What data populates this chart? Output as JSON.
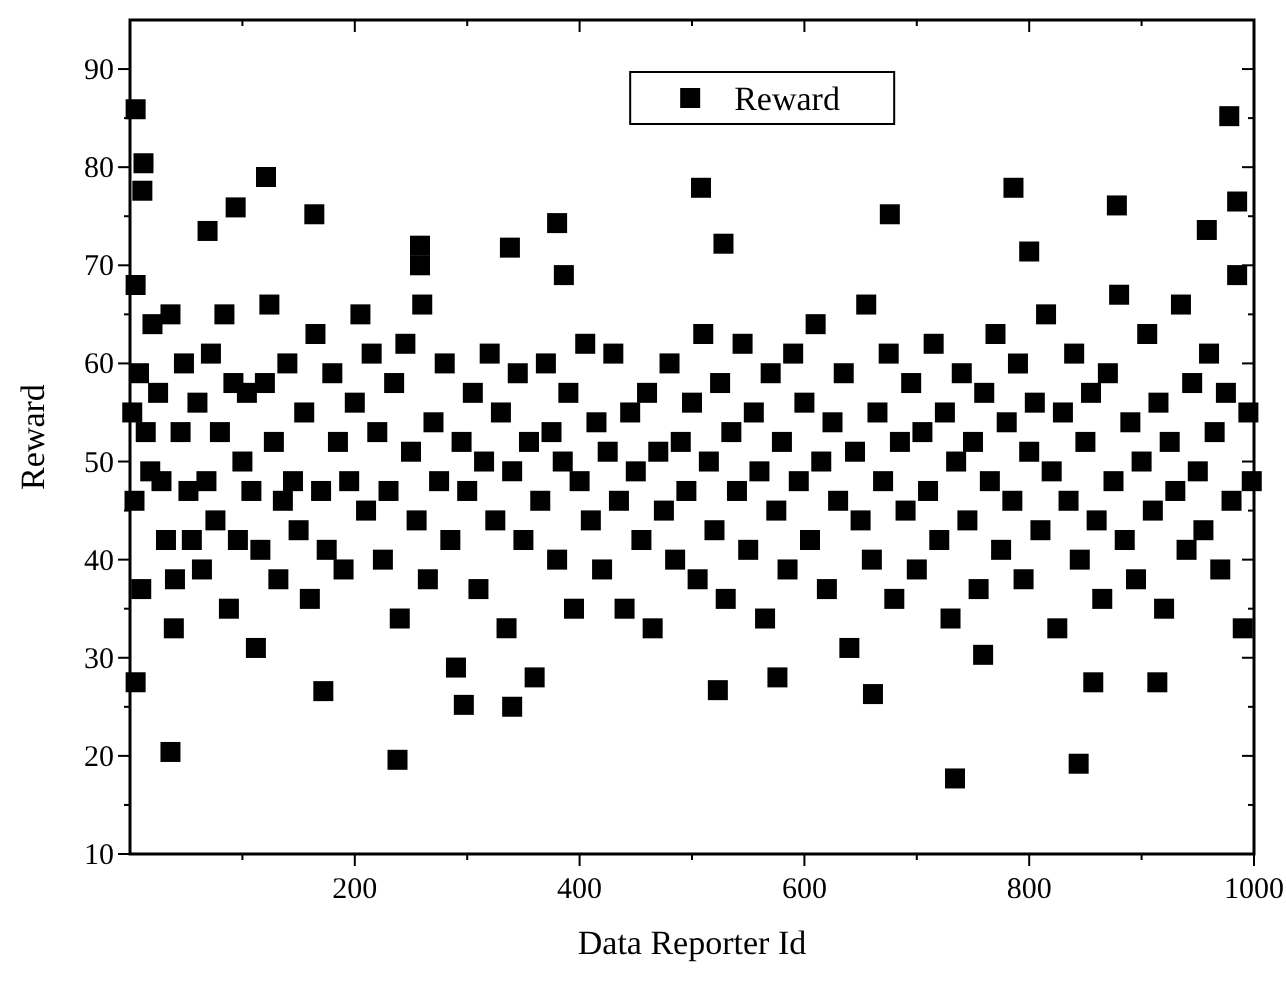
{
  "chart_data": {
    "type": "scatter",
    "xlabel": "Data Reporter Id",
    "ylabel": "Reward",
    "xlim": [
      0,
      1000
    ],
    "ylim": [
      10,
      95
    ],
    "xticks": [
      {
        "value": 100,
        "label": null
      },
      200,
      {
        "value": 300,
        "label": null
      },
      400,
      {
        "value": 500,
        "label": null
      },
      600,
      {
        "value": 700,
        "label": null
      },
      800,
      {
        "value": 900,
        "label": null
      },
      1000
    ],
    "yticks": [
      10,
      {
        "value": 15,
        "label": null
      },
      20,
      {
        "value": 25,
        "label": null
      },
      30,
      {
        "value": 35,
        "label": null
      },
      40,
      {
        "value": 45,
        "label": null
      },
      50,
      {
        "value": 55,
        "label": null
      },
      60,
      {
        "value": 65,
        "label": null
      },
      70,
      {
        "value": 75,
        "label": null
      },
      80,
      {
        "value": 85,
        "label": null
      },
      90
    ],
    "grid": false,
    "legend": "top",
    "marker": "square",
    "series": [
      {
        "name": "Reward",
        "color": "#000000",
        "x": [
          5,
          12,
          11,
          5,
          5,
          36,
          39,
          69,
          94,
          121,
          164,
          172,
          238,
          258,
          258,
          338,
          380,
          340,
          297,
          386,
          978,
          508,
          786,
          676,
          878,
          985,
          528,
          800,
          958,
          734,
          844,
          523,
          661,
          857,
          914,
          576,
          759,
          2,
          4,
          8,
          10,
          14,
          18,
          20,
          25,
          28,
          32,
          36,
          40,
          45,
          48,
          52,
          55,
          60,
          64,
          68,
          72,
          76,
          80,
          84,
          88,
          92,
          96,
          100,
          104,
          108,
          112,
          116,
          120,
          124,
          128,
          132,
          136,
          140,
          145,
          150,
          155,
          160,
          165,
          170,
          175,
          180,
          185,
          190,
          195,
          200,
          205,
          210,
          215,
          220,
          225,
          230,
          235,
          240,
          245,
          250,
          255,
          260,
          265,
          270,
          275,
          280,
          285,
          290,
          295,
          300,
          305,
          310,
          315,
          320,
          325,
          330,
          335,
          340,
          345,
          350,
          355,
          360,
          365,
          370,
          375,
          380,
          385,
          390,
          395,
          400,
          405,
          410,
          415,
          420,
          425,
          430,
          435,
          440,
          445,
          450,
          455,
          460,
          465,
          470,
          475,
          480,
          485,
          490,
          495,
          500,
          505,
          510,
          515,
          520,
          525,
          530,
          535,
          540,
          545,
          550,
          555,
          560,
          565,
          570,
          575,
          580,
          585,
          590,
          595,
          600,
          605,
          610,
          615,
          620,
          625,
          630,
          635,
          640,
          645,
          650,
          655,
          660,
          665,
          670,
          675,
          680,
          685,
          690,
          695,
          700,
          705,
          710,
          715,
          720,
          725,
          730,
          735,
          740,
          745,
          750,
          755,
          760,
          765,
          770,
          775,
          780,
          785,
          790,
          795,
          800,
          805,
          810,
          815,
          820,
          825,
          830,
          835,
          840,
          845,
          850,
          855,
          860,
          865,
          870,
          875,
          880,
          885,
          890,
          895,
          900,
          905,
          910,
          915,
          920,
          925,
          930,
          935,
          940,
          945,
          950,
          955,
          960,
          965,
          970,
          975,
          980,
          985,
          990,
          995,
          998
        ],
        "values": [
          85.9,
          80.4,
          77.6,
          68,
          27.5,
          20.4,
          33,
          73.5,
          75.9,
          79,
          75.2,
          26.6,
          19.6,
          72,
          70,
          71.8,
          74.3,
          25,
          25.2,
          69,
          85.2,
          77.9,
          77.9,
          75.2,
          76.1,
          76.5,
          72.2,
          71.4,
          73.6,
          17.7,
          19.2,
          26.7,
          26.3,
          27.5,
          27.5,
          28,
          30.3,
          55,
          46,
          59,
          37,
          53,
          49,
          64,
          57,
          48,
          42,
          65,
          38,
          53,
          60,
          47,
          42,
          56,
          39,
          48,
          61,
          44,
          53,
          65,
          35,
          58,
          42,
          50,
          57,
          47,
          31,
          41,
          58,
          66,
          52,
          38,
          46,
          60,
          48,
          43,
          55,
          36,
          63,
          47,
          41,
          59,
          52,
          39,
          48,
          56,
          65,
          45,
          61,
          53,
          40,
          47,
          58,
          34,
          62,
          51,
          44,
          66,
          38,
          54,
          48,
          60,
          42,
          29,
          52,
          47,
          57,
          37,
          50,
          61,
          44,
          55,
          33,
          49,
          59,
          42,
          52,
          28,
          46,
          60,
          53,
          40,
          50,
          57,
          35,
          48,
          62,
          44,
          54,
          39,
          51,
          61,
          46,
          35,
          55,
          49,
          42,
          57,
          33,
          51,
          45,
          60,
          40,
          52,
          47,
          56,
          38,
          63,
          50,
          43,
          58,
          36,
          53,
          47,
          62,
          41,
          55,
          49,
          34,
          59,
          45,
          52,
          39,
          61,
          48,
          56,
          42,
          64,
          50,
          37,
          54,
          46,
          59,
          31,
          51,
          44,
          66,
          40,
          55,
          48,
          61,
          36,
          52,
          45,
          58,
          39,
          53,
          47,
          62,
          42,
          55,
          34,
          50,
          59,
          44,
          52,
          37,
          57,
          48,
          63,
          41,
          54,
          46,
          60,
          38,
          51,
          56,
          43,
          65,
          49,
          33,
          55,
          46,
          61,
          40,
          52,
          57,
          44,
          36,
          59,
          48,
          67,
          42,
          54,
          38,
          50,
          63,
          45,
          56,
          35,
          52,
          47,
          66,
          41,
          58,
          49,
          43,
          61,
          53,
          39,
          57,
          46,
          69,
          33,
          55,
          48
        ]
      }
    ]
  }
}
